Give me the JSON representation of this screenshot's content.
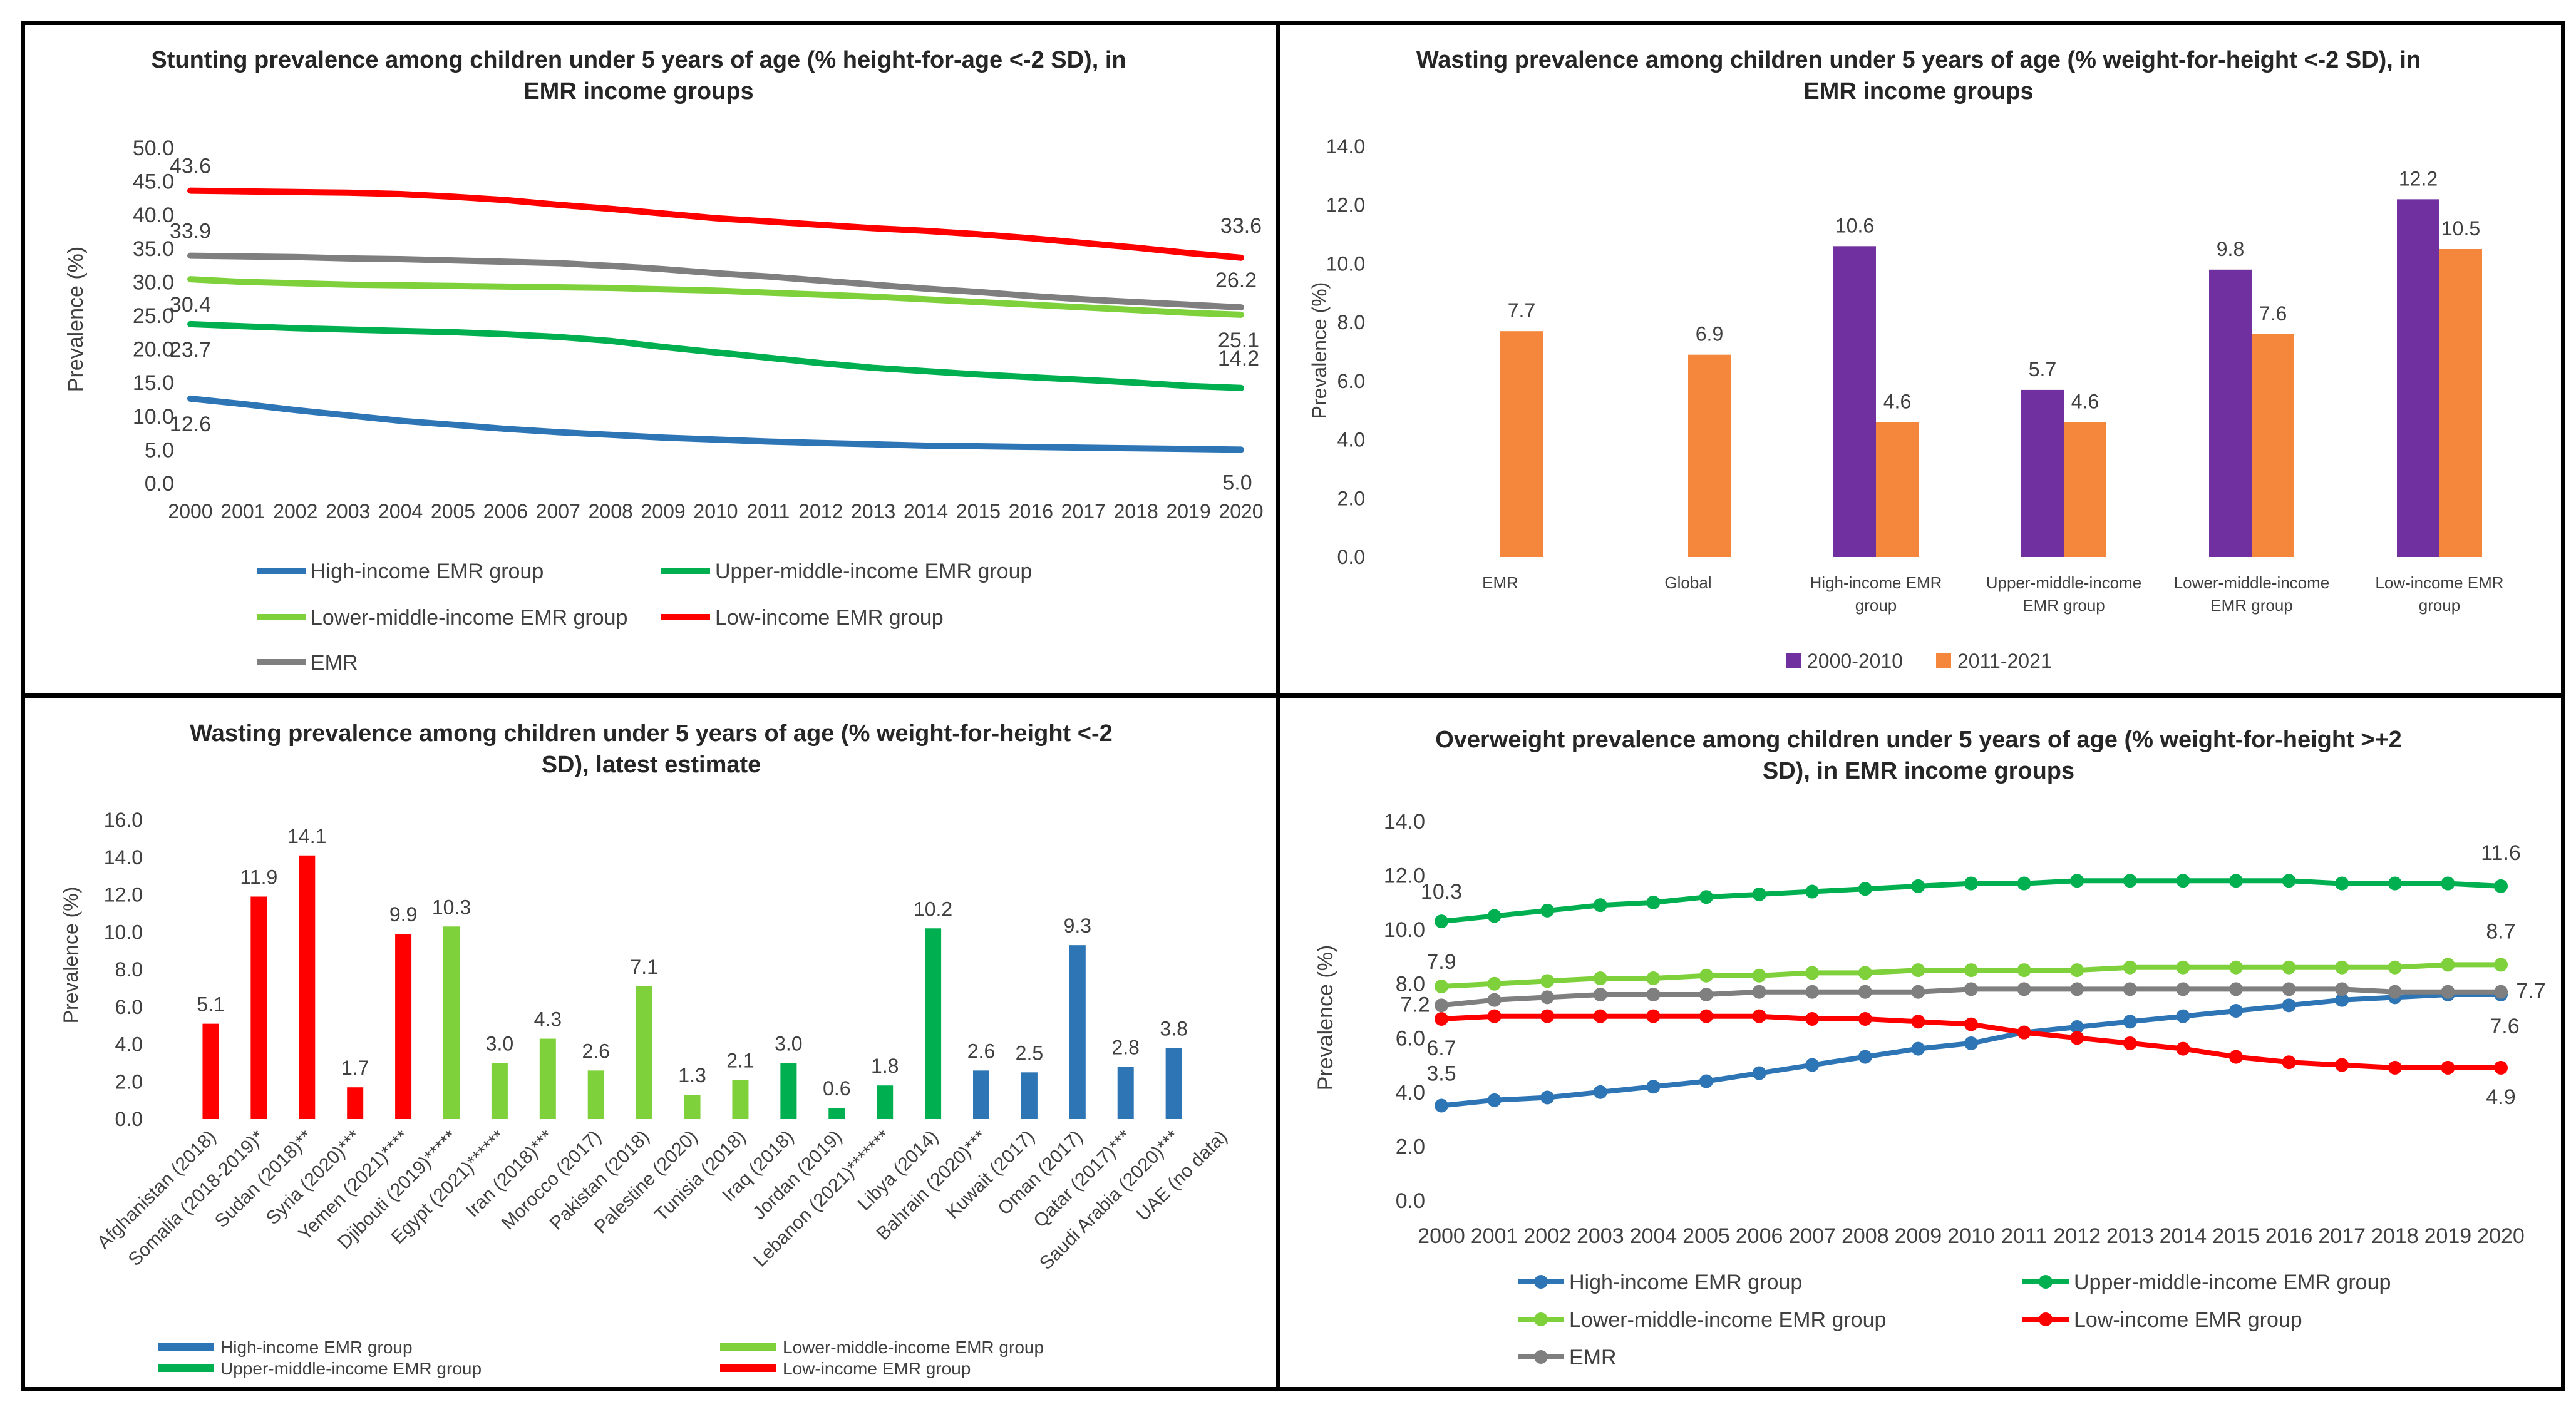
{
  "colors": {
    "high": "#2E75B6",
    "upper": "#00B050",
    "lower": "#7FD13B",
    "low": "#FF0000",
    "emr": "#7F7F7F",
    "purple": "#7030A0",
    "orange": "#F4873B"
  },
  "legend_names": {
    "high": "High-income EMR group",
    "upper": "Upper-middle-income EMR group",
    "lower": "Lower-middle-income EMR group",
    "low": "Low-income EMR group",
    "emr": "EMR"
  },
  "chart_data": [
    {
      "id": "stunting",
      "type": "line",
      "title_lines": [
        "Stunting prevalence among children under 5 years of age (% height-for-age <-2 SD), in",
        "EMR income groups"
      ],
      "ylabel": "Prevalence (%)",
      "ylim": [
        0,
        50
      ],
      "yticks": [
        "0.0",
        "5.0",
        "10.0",
        "15.0",
        "20.0",
        "25.0",
        "30.0",
        "35.0",
        "40.0",
        "45.0",
        "50.0"
      ],
      "x": [
        "2000",
        "2001",
        "2002",
        "2003",
        "2004",
        "2005",
        "2006",
        "2007",
        "2008",
        "2009",
        "2010",
        "2011",
        "2012",
        "2013",
        "2014",
        "2015",
        "2016",
        "2017",
        "2018",
        "2019",
        "2020"
      ],
      "series": [
        {
          "key": "high",
          "name": "High-income EMR group",
          "values": [
            12.6,
            11.8,
            10.9,
            10.1,
            9.3,
            8.7,
            8.1,
            7.6,
            7.2,
            6.8,
            6.5,
            6.2,
            6.0,
            5.8,
            5.6,
            5.5,
            5.4,
            5.3,
            5.2,
            5.1,
            5.0
          ],
          "first_label": "12.6",
          "last_label": "5.0"
        },
        {
          "key": "upper",
          "name": "Upper-middle-income EMR group",
          "values": [
            23.7,
            23.4,
            23.1,
            22.9,
            22.7,
            22.5,
            22.2,
            21.8,
            21.2,
            20.3,
            19.5,
            18.7,
            17.9,
            17.2,
            16.7,
            16.2,
            15.8,
            15.4,
            15.0,
            14.5,
            14.2
          ],
          "first_label": "23.7",
          "last_label": "14.2"
        },
        {
          "key": "lower",
          "name": "Lower-middle-income EMR group",
          "values": [
            30.4,
            30.0,
            29.8,
            29.6,
            29.5,
            29.4,
            29.3,
            29.2,
            29.1,
            28.9,
            28.7,
            28.4,
            28.1,
            27.8,
            27.4,
            27.0,
            26.6,
            26.2,
            25.8,
            25.4,
            25.1
          ],
          "first_label": "30.4",
          "last_label": "25.1"
        },
        {
          "key": "low",
          "name": "Low-income EMR group",
          "values": [
            43.6,
            43.5,
            43.4,
            43.3,
            43.1,
            42.7,
            42.2,
            41.5,
            40.9,
            40.2,
            39.5,
            39.0,
            38.5,
            38.0,
            37.6,
            37.1,
            36.5,
            35.8,
            35.1,
            34.3,
            33.6
          ],
          "first_label": "43.6",
          "last_label": "33.6"
        },
        {
          "key": "emr",
          "name": "EMR",
          "values": [
            33.9,
            33.8,
            33.7,
            33.5,
            33.4,
            33.2,
            33.0,
            32.8,
            32.4,
            31.9,
            31.3,
            30.8,
            30.2,
            29.6,
            29.0,
            28.5,
            27.9,
            27.4,
            27.0,
            26.6,
            26.2
          ],
          "first_label": "33.9",
          "last_label": "26.2"
        }
      ],
      "legend_order": [
        "high",
        "upper",
        "lower",
        "low",
        "emr"
      ]
    },
    {
      "id": "wasting_groups",
      "type": "bar",
      "title_lines": [
        "Wasting prevalence among children under 5 years of age (% weight-for-height <-2 SD), in",
        "EMR income groups"
      ],
      "ylabel": "Prevalence (%)",
      "ylim": [
        0,
        14
      ],
      "yticks": [
        "0.0",
        "2.0",
        "4.0",
        "6.0",
        "8.0",
        "10.0",
        "12.0",
        "14.0"
      ],
      "categories": [
        [
          "EMR"
        ],
        [
          "Global"
        ],
        [
          "High-income EMR",
          "group"
        ],
        [
          "Upper-middle-income",
          "EMR group"
        ],
        [
          "Lower-middle-income",
          "EMR group"
        ],
        [
          "Low-income EMR",
          "group"
        ]
      ],
      "series": [
        {
          "name": "2000-2010",
          "color_key": "purple",
          "values": [
            null,
            null,
            10.6,
            5.7,
            9.8,
            12.2
          ],
          "labels": [
            "",
            "",
            "10.6",
            "5.7",
            "9.8",
            "12.2"
          ]
        },
        {
          "name": "2011-2021",
          "color_key": "orange",
          "values": [
            7.7,
            6.9,
            4.6,
            4.6,
            7.6,
            10.5
          ],
          "labels": [
            "7.7",
            "6.9",
            "4.6",
            "4.6",
            "7.6",
            "10.5"
          ]
        }
      ]
    },
    {
      "id": "wasting_countries",
      "type": "bar",
      "title_lines": [
        "Wasting prevalence among children under 5 years of age (% weight-for-height <-2",
        "SD), latest estimate"
      ],
      "ylabel": "Prevalence (%)",
      "ylim": [
        0,
        16
      ],
      "yticks": [
        "0.0",
        "2.0",
        "4.0",
        "6.0",
        "8.0",
        "10.0",
        "12.0",
        "14.0",
        "16.0"
      ],
      "categories": [
        "Afghanistan (2018)",
        "Somalia (2018-2019)*",
        "Sudan (2018)**",
        "Syria (2020)***",
        "Yemen (2021)****",
        "Djibouti (2019)*****",
        "Egypt (2021)******",
        "Iran (2018)***",
        "Morocco (2017)",
        "Pakistan (2018)",
        "Palestine (2020)",
        "Tunisia (2018)",
        "Iraq (2018)",
        "Jordan (2019)",
        "Lebanon (2021)*******",
        "Libya (2014)",
        "Bahrain (2020)***",
        "Kuwait (2017)",
        "Oman (2017)",
        "Qatar (2017)***",
        "Saudi Arabia (2020)***",
        "UAE (no data)"
      ],
      "values": [
        5.1,
        11.9,
        14.1,
        1.7,
        9.9,
        10.3,
        3.0,
        4.3,
        2.6,
        7.1,
        1.3,
        2.1,
        3.0,
        0.6,
        1.8,
        10.2,
        2.6,
        2.5,
        9.3,
        2.8,
        3.8,
        null
      ],
      "labels": [
        "5.1",
        "11.9",
        "14.1",
        "1.7",
        "9.9",
        "10.3",
        "3.0",
        "4.3",
        "2.6",
        "7.1",
        "1.3",
        "2.1",
        "3.0",
        "0.6",
        "1.8",
        "10.2",
        "2.6",
        "2.5",
        "9.3",
        "2.8",
        "3.8",
        ""
      ],
      "groups": [
        "low",
        "low",
        "low",
        "low",
        "low",
        "lower",
        "lower",
        "lower",
        "lower",
        "lower",
        "lower",
        "lower",
        "upper",
        "upper",
        "upper",
        "upper",
        "high",
        "high",
        "high",
        "high",
        "high",
        "high"
      ],
      "legend": [
        {
          "key": "high",
          "name": "High-income EMR group"
        },
        {
          "key": "lower",
          "name": "Lower-middle-income EMR group"
        },
        {
          "key": "upper",
          "name": "Upper-middle-income EMR group"
        },
        {
          "key": "low",
          "name": "Low-income EMR group"
        }
      ]
    },
    {
      "id": "overweight",
      "type": "line",
      "title_lines": [
        "Overweight prevalence among children under 5 years of age (% weight-for-height >+2",
        "SD), in EMR income groups"
      ],
      "ylabel": "Prevalence (%)",
      "ylim": [
        0,
        14
      ],
      "yticks": [
        "0.0",
        "2.0",
        "4.0",
        "6.0",
        "8.0",
        "10.0",
        "12.0",
        "14.0"
      ],
      "x": [
        "2000",
        "2001",
        "2002",
        "2003",
        "2004",
        "2005",
        "2006",
        "2007",
        "2008",
        "2009",
        "2010",
        "2011",
        "2012",
        "2013",
        "2014",
        "2015",
        "2016",
        "2017",
        "2018",
        "2019",
        "2020"
      ],
      "series": [
        {
          "key": "high",
          "name": "High-income EMR group",
          "values": [
            3.5,
            3.7,
            3.8,
            4.0,
            4.2,
            4.4,
            4.7,
            5.0,
            5.3,
            5.6,
            5.8,
            6.2,
            6.4,
            6.6,
            6.8,
            7.0,
            7.2,
            7.4,
            7.5,
            7.6,
            7.6
          ],
          "first_label": "3.5",
          "last_label": "7.6"
        },
        {
          "key": "upper",
          "name": "Upper-middle-income EMR group",
          "values": [
            10.3,
            10.5,
            10.7,
            10.9,
            11.0,
            11.2,
            11.3,
            11.4,
            11.5,
            11.6,
            11.7,
            11.7,
            11.8,
            11.8,
            11.8,
            11.8,
            11.8,
            11.7,
            11.7,
            11.7,
            11.6
          ],
          "first_label": "10.3",
          "last_label": "11.6"
        },
        {
          "key": "lower",
          "name": "Lower-middle-income EMR group",
          "values": [
            7.9,
            8.0,
            8.1,
            8.2,
            8.2,
            8.3,
            8.3,
            8.4,
            8.4,
            8.5,
            8.5,
            8.5,
            8.5,
            8.6,
            8.6,
            8.6,
            8.6,
            8.6,
            8.6,
            8.7,
            8.7
          ],
          "first_label": "7.9",
          "last_label": "8.7"
        },
        {
          "key": "low",
          "name": "Low-income EMR group",
          "values": [
            6.7,
            6.8,
            6.8,
            6.8,
            6.8,
            6.8,
            6.8,
            6.7,
            6.7,
            6.6,
            6.5,
            6.2,
            6.0,
            5.8,
            5.6,
            5.3,
            5.1,
            5.0,
            4.9,
            4.9,
            4.9
          ],
          "first_label": "6.7",
          "last_label": "4.9"
        },
        {
          "key": "emr",
          "name": "EMR",
          "values": [
            7.2,
            7.4,
            7.5,
            7.6,
            7.6,
            7.6,
            7.7,
            7.7,
            7.7,
            7.7,
            7.8,
            7.8,
            7.8,
            7.8,
            7.8,
            7.8,
            7.8,
            7.8,
            7.7,
            7.7,
            7.7
          ],
          "first_label": "7.2",
          "last_label": "7.7"
        }
      ],
      "legend_order": [
        "high",
        "upper",
        "lower",
        "low",
        "emr"
      ]
    }
  ]
}
